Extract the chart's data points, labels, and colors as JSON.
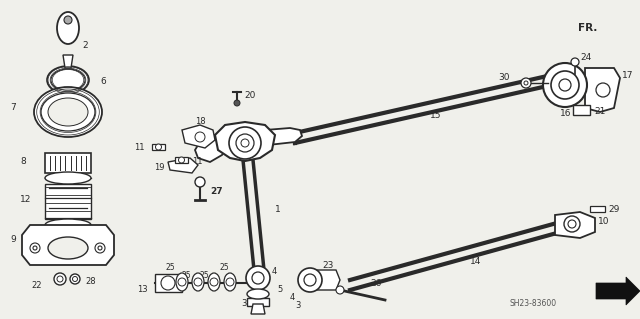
{
  "bg_color": "#f0f0eb",
  "line_color": "#2a2a2a",
  "watermark": "SH23-83600",
  "figsize": [
    6.4,
    3.19
  ],
  "dpi": 100,
  "xlim": [
    0,
    640
  ],
  "ylim": [
    0,
    319
  ]
}
